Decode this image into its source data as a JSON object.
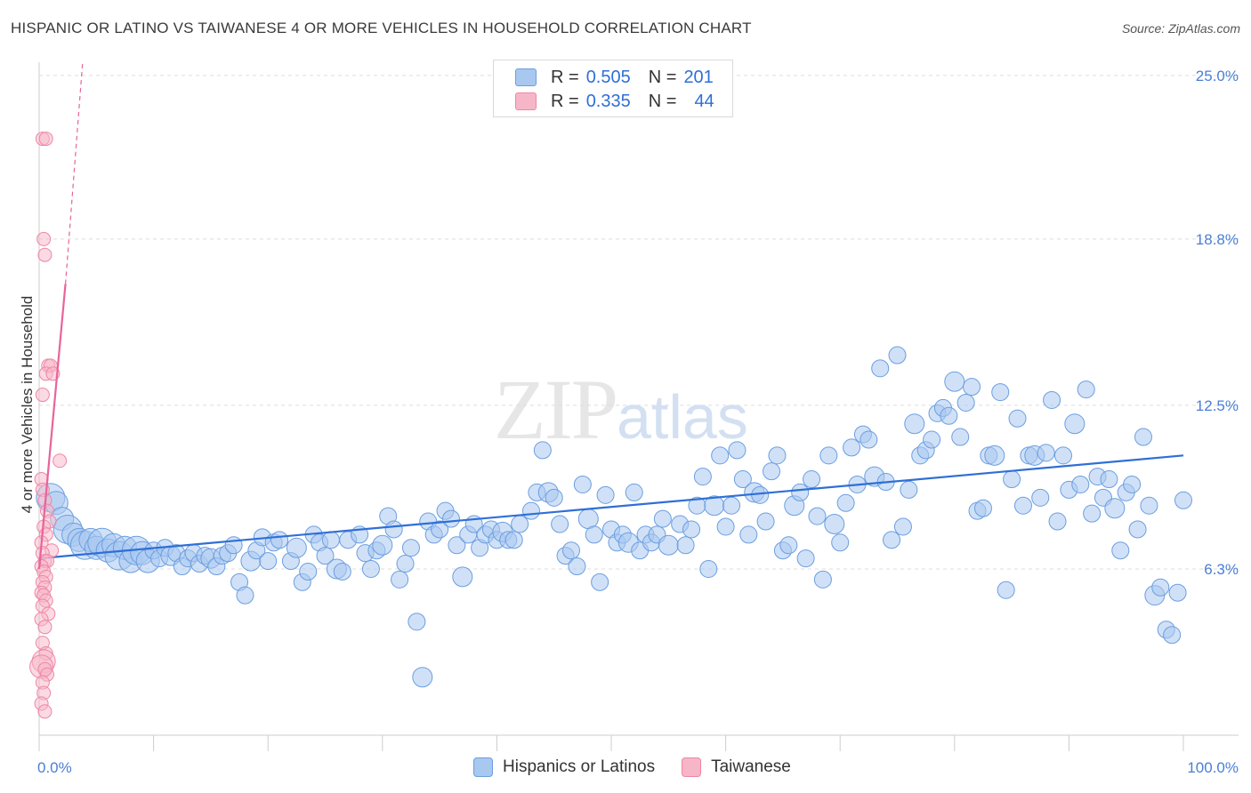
{
  "title": "HISPANIC OR LATINO VS TAIWANESE 4 OR MORE VEHICLES IN HOUSEHOLD CORRELATION CHART",
  "source": "Source: ZipAtlas.com",
  "watermark": {
    "zip": "ZIP",
    "atlas": "atlas"
  },
  "legend_top": [
    {
      "r_label": "R =",
      "r_value": "0.505",
      "n_label": "N =",
      "n_value": "201",
      "color": "#a9c8f0"
    },
    {
      "r_label": "R =",
      "r_value": "0.335",
      "n_label": "N =",
      "n_value": "44",
      "color": "#f7b6c8"
    }
  ],
  "legend_bottom": [
    {
      "label": "Hispanics or Latinos",
      "color": "#a9c8f0"
    },
    {
      "label": "Taiwanese",
      "color": "#f7b6c8"
    }
  ],
  "colors": {
    "blue_fill": "#a9c8f0",
    "blue_stroke": "#6b9ee0",
    "blue_line": "#2f6fd6",
    "pink_fill": "#f7b6c8",
    "pink_stroke": "#ee86a6",
    "pink_line": "#e8649a",
    "axis_text": "#4a7fd4",
    "grid": "#dddddd"
  },
  "chart_data": {
    "type": "scatter",
    "title": "HISPANIC OR LATINO VS TAIWANESE 4 OR MORE VEHICLES IN HOUSEHOLD CORRELATION CHART",
    "xlabel": "",
    "ylabel": "4 or more Vehicles in Household",
    "xlim": [
      0,
      100
    ],
    "ylim": [
      0,
      25.5
    ],
    "x_tick_labels": [
      "0.0%",
      "100.0%"
    ],
    "y_ticks": [
      6.3,
      12.5,
      18.8,
      25.0
    ],
    "y_tick_labels": [
      "6.3%",
      "12.5%",
      "18.8%",
      "25.0%"
    ],
    "grid": true,
    "series": [
      {
        "name": "Hispanics or Latinos",
        "trend": {
          "x": [
            0,
            100
          ],
          "y": [
            6.7,
            10.6
          ]
        },
        "points": [
          [
            1,
            9
          ],
          [
            1.5,
            8.8
          ],
          [
            2,
            8.2
          ],
          [
            2.5,
            7.8
          ],
          [
            3,
            7.6
          ],
          [
            3.5,
            7.4
          ],
          [
            4,
            7.2
          ],
          [
            4.5,
            7.4
          ],
          [
            5,
            7.1
          ],
          [
            5.5,
            7.3
          ],
          [
            6,
            7.0
          ],
          [
            6.5,
            7.2
          ],
          [
            7,
            6.8
          ],
          [
            7.5,
            7.1
          ],
          [
            8,
            6.6
          ],
          [
            8.5,
            7.0
          ],
          [
            9,
            6.9
          ],
          [
            9.5,
            6.6
          ],
          [
            10,
            7.0
          ],
          [
            10.5,
            6.7
          ],
          [
            11,
            7.1
          ],
          [
            11.5,
            6.8
          ],
          [
            12,
            6.9
          ],
          [
            12.5,
            6.4
          ],
          [
            13,
            6.7
          ],
          [
            13.5,
            6.9
          ],
          [
            14,
            6.5
          ],
          [
            14.5,
            6.8
          ],
          [
            15,
            6.7
          ],
          [
            15.5,
            6.4
          ],
          [
            16,
            6.8
          ],
          [
            16.5,
            6.9
          ],
          [
            17,
            7.2
          ],
          [
            17.5,
            5.8
          ],
          [
            18,
            5.3
          ],
          [
            18.5,
            6.6
          ],
          [
            19,
            7.0
          ],
          [
            19.5,
            7.5
          ],
          [
            20,
            6.6
          ],
          [
            20.5,
            7.3
          ],
          [
            21,
            7.4
          ],
          [
            22,
            6.6
          ],
          [
            22.5,
            7.1
          ],
          [
            23,
            5.8
          ],
          [
            23.5,
            6.2
          ],
          [
            24,
            7.6
          ],
          [
            24.5,
            7.3
          ],
          [
            25,
            6.8
          ],
          [
            25.5,
            7.4
          ],
          [
            26,
            6.3
          ],
          [
            26.5,
            6.2
          ],
          [
            27,
            7.4
          ],
          [
            28,
            7.6
          ],
          [
            28.5,
            6.9
          ],
          [
            29,
            6.3
          ],
          [
            29.5,
            7.0
          ],
          [
            30,
            7.2
          ],
          [
            30.5,
            8.3
          ],
          [
            31,
            7.8
          ],
          [
            31.5,
            5.9
          ],
          [
            32,
            6.5
          ],
          [
            32.5,
            7.1
          ],
          [
            33,
            4.3
          ],
          [
            33.5,
            2.2
          ],
          [
            34,
            8.1
          ],
          [
            34.5,
            7.6
          ],
          [
            35,
            7.8
          ],
          [
            35.5,
            8.5
          ],
          [
            36,
            8.2
          ],
          [
            36.5,
            7.2
          ],
          [
            37,
            6.0
          ],
          [
            37.5,
            7.6
          ],
          [
            38,
            8.0
          ],
          [
            38.5,
            7.1
          ],
          [
            39,
            7.6
          ],
          [
            39.5,
            7.8
          ],
          [
            40,
            7.4
          ],
          [
            40.5,
            7.7
          ],
          [
            41,
            7.4
          ],
          [
            41.5,
            7.4
          ],
          [
            42,
            8.0
          ],
          [
            43,
            8.5
          ],
          [
            43.5,
            9.2
          ],
          [
            44,
            10.8
          ],
          [
            44.5,
            9.2
          ],
          [
            45,
            9.0
          ],
          [
            45.5,
            8.0
          ],
          [
            46,
            6.8
          ],
          [
            46.5,
            7.0
          ],
          [
            47,
            6.4
          ],
          [
            47.5,
            9.5
          ],
          [
            48,
            8.2
          ],
          [
            48.5,
            7.6
          ],
          [
            49,
            5.8
          ],
          [
            49.5,
            9.1
          ],
          [
            50,
            7.8
          ],
          [
            50.5,
            7.3
          ],
          [
            51,
            7.6
          ],
          [
            51.5,
            7.3
          ],
          [
            52,
            9.2
          ],
          [
            52.5,
            7.0
          ],
          [
            53,
            7.6
          ],
          [
            53.5,
            7.3
          ],
          [
            54,
            7.6
          ],
          [
            54.5,
            8.2
          ],
          [
            55,
            7.2
          ],
          [
            56,
            8.0
          ],
          [
            56.5,
            7.2
          ],
          [
            57,
            7.8
          ],
          [
            57.5,
            8.7
          ],
          [
            58,
            9.8
          ],
          [
            58.5,
            6.3
          ],
          [
            59,
            8.7
          ],
          [
            59.5,
            10.6
          ],
          [
            60,
            7.9
          ],
          [
            60.5,
            8.7
          ],
          [
            61,
            10.8
          ],
          [
            61.5,
            9.7
          ],
          [
            62,
            7.6
          ],
          [
            62.5,
            9.2
          ],
          [
            63,
            9.1
          ],
          [
            63.5,
            8.1
          ],
          [
            64,
            10.0
          ],
          [
            64.5,
            10.6
          ],
          [
            65,
            7.0
          ],
          [
            65.5,
            7.2
          ],
          [
            66,
            8.7
          ],
          [
            66.5,
            9.2
          ],
          [
            67,
            6.7
          ],
          [
            67.5,
            9.7
          ],
          [
            68,
            8.3
          ],
          [
            68.5,
            5.9
          ],
          [
            69,
            10.6
          ],
          [
            69.5,
            8.0
          ],
          [
            70,
            7.3
          ],
          [
            70.5,
            8.8
          ],
          [
            71,
            10.9
          ],
          [
            71.5,
            9.5
          ],
          [
            72,
            11.4
          ],
          [
            72.5,
            11.2
          ],
          [
            73,
            9.8
          ],
          [
            73.5,
            13.9
          ],
          [
            74,
            9.6
          ],
          [
            74.5,
            7.4
          ],
          [
            75,
            14.4
          ],
          [
            75.5,
            7.9
          ],
          [
            76,
            9.3
          ],
          [
            76.5,
            11.8
          ],
          [
            77,
            10.6
          ],
          [
            77.5,
            10.8
          ],
          [
            78,
            11.2
          ],
          [
            78.5,
            12.2
          ],
          [
            79,
            12.4
          ],
          [
            79.5,
            12.1
          ],
          [
            80,
            13.4
          ],
          [
            80.5,
            11.3
          ],
          [
            81,
            12.6
          ],
          [
            81.5,
            13.2
          ],
          [
            82,
            8.5
          ],
          [
            82.5,
            8.6
          ],
          [
            83,
            10.6
          ],
          [
            83.5,
            10.6
          ],
          [
            84,
            13.0
          ],
          [
            84.5,
            5.5
          ],
          [
            85,
            9.7
          ],
          [
            85.5,
            12.0
          ],
          [
            86,
            8.7
          ],
          [
            86.5,
            10.6
          ],
          [
            87,
            10.6
          ],
          [
            87.5,
            9.0
          ],
          [
            88,
            10.7
          ],
          [
            88.5,
            12.7
          ],
          [
            89,
            8.1
          ],
          [
            89.5,
            10.6
          ],
          [
            90,
            9.3
          ],
          [
            90.5,
            11.8
          ],
          [
            91,
            9.5
          ],
          [
            91.5,
            13.1
          ],
          [
            92,
            8.4
          ],
          [
            92.5,
            9.8
          ],
          [
            93,
            9.0
          ],
          [
            93.5,
            9.7
          ],
          [
            94,
            8.6
          ],
          [
            94.5,
            7.0
          ],
          [
            95,
            9.2
          ],
          [
            95.5,
            9.5
          ],
          [
            96,
            7.8
          ],
          [
            96.5,
            11.3
          ],
          [
            97,
            8.7
          ],
          [
            97.5,
            5.3
          ],
          [
            98,
            5.6
          ],
          [
            98.5,
            4.0
          ],
          [
            99,
            3.8
          ],
          [
            99.5,
            5.4
          ],
          [
            100,
            8.9
          ]
        ]
      },
      {
        "name": "Taiwanese",
        "trend": {
          "x": [
            0,
            2.3
          ],
          "y": [
            6.3,
            17.1
          ]
        },
        "trend_extrapolated": {
          "x": [
            2.3,
            3.8
          ],
          "y": [
            17.1,
            25.5
          ]
        },
        "points": [
          [
            0.3,
            22.6
          ],
          [
            0.6,
            22.6
          ],
          [
            0.4,
            18.8
          ],
          [
            0.5,
            18.2
          ],
          [
            0.8,
            14.0
          ],
          [
            1.0,
            14.0
          ],
          [
            0.6,
            13.7
          ],
          [
            1.2,
            13.7
          ],
          [
            0.3,
            12.9
          ],
          [
            1.8,
            10.4
          ],
          [
            0.2,
            9.7
          ],
          [
            0.3,
            9.3
          ],
          [
            0.5,
            8.9
          ],
          [
            0.7,
            8.5
          ],
          [
            0.9,
            8.1
          ],
          [
            0.4,
            7.9
          ],
          [
            0.6,
            7.6
          ],
          [
            0.2,
            7.3
          ],
          [
            1.1,
            7.0
          ],
          [
            0.3,
            6.9
          ],
          [
            0.5,
            6.6
          ],
          [
            0.7,
            6.6
          ],
          [
            0.2,
            6.4
          ],
          [
            0.4,
            6.2
          ],
          [
            0.6,
            6.0
          ],
          [
            0.3,
            5.8
          ],
          [
            0.5,
            5.6
          ],
          [
            0.2,
            5.4
          ],
          [
            0.4,
            5.3
          ],
          [
            0.6,
            5.1
          ],
          [
            0.3,
            4.9
          ],
          [
            0.8,
            4.6
          ],
          [
            0.2,
            4.4
          ],
          [
            0.5,
            4.1
          ],
          [
            0.3,
            3.5
          ],
          [
            0.6,
            3.1
          ],
          [
            0.4,
            2.8
          ],
          [
            0.2,
            2.6
          ],
          [
            0.5,
            2.5
          ],
          [
            0.7,
            2.3
          ],
          [
            0.3,
            2.0
          ],
          [
            0.4,
            1.6
          ],
          [
            0.2,
            1.2
          ],
          [
            0.5,
            0.9
          ]
        ]
      }
    ]
  }
}
